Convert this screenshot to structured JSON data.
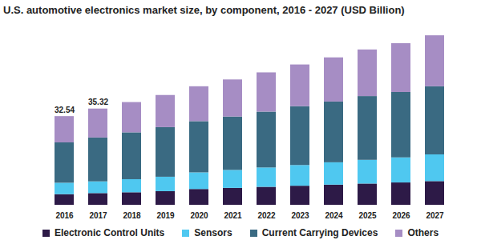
{
  "chart_data": {
    "type": "bar",
    "title": "U.S. automotive electronics market size, by component, 2016 - 2027 (USD Billion)",
    "categories": [
      "2016",
      "2017",
      "2018",
      "2019",
      "2020",
      "2021",
      "2022",
      "2023",
      "2024",
      "2025",
      "2026",
      "2027"
    ],
    "series": [
      {
        "name": "Electronic Control Units",
        "color": "#2d1a47",
        "values": [
          3.9,
          4.3,
          4.6,
          5.0,
          5.8,
          6.2,
          6.6,
          7.0,
          7.4,
          7.8,
          8.2,
          8.7
        ]
      },
      {
        "name": "Sensors",
        "color": "#4fc8f0",
        "values": [
          4.2,
          4.3,
          4.8,
          5.3,
          6.1,
          6.6,
          7.1,
          7.6,
          8.2,
          8.7,
          9.2,
          9.8
        ]
      },
      {
        "name": "Current Carrying Devices",
        "color": "#3a6a82",
        "values": [
          14.8,
          16.1,
          17.2,
          18.2,
          18.8,
          19.6,
          20.5,
          21.6,
          22.3,
          23.4,
          24.0,
          25.0
        ]
      },
      {
        "name": "Others",
        "color": "#a68dc4",
        "values": [
          9.64,
          10.62,
          11.1,
          11.8,
          12.8,
          13.6,
          14.4,
          15.3,
          16.2,
          17.1,
          17.9,
          18.7
        ]
      }
    ],
    "annotations": [
      {
        "x": "2016",
        "value": 32.54
      },
      {
        "x": "2017",
        "value": 35.32
      }
    ],
    "ylim": [
      0,
      64
    ],
    "stacked": true,
    "tick_labels": "x",
    "legend": "bottom"
  }
}
